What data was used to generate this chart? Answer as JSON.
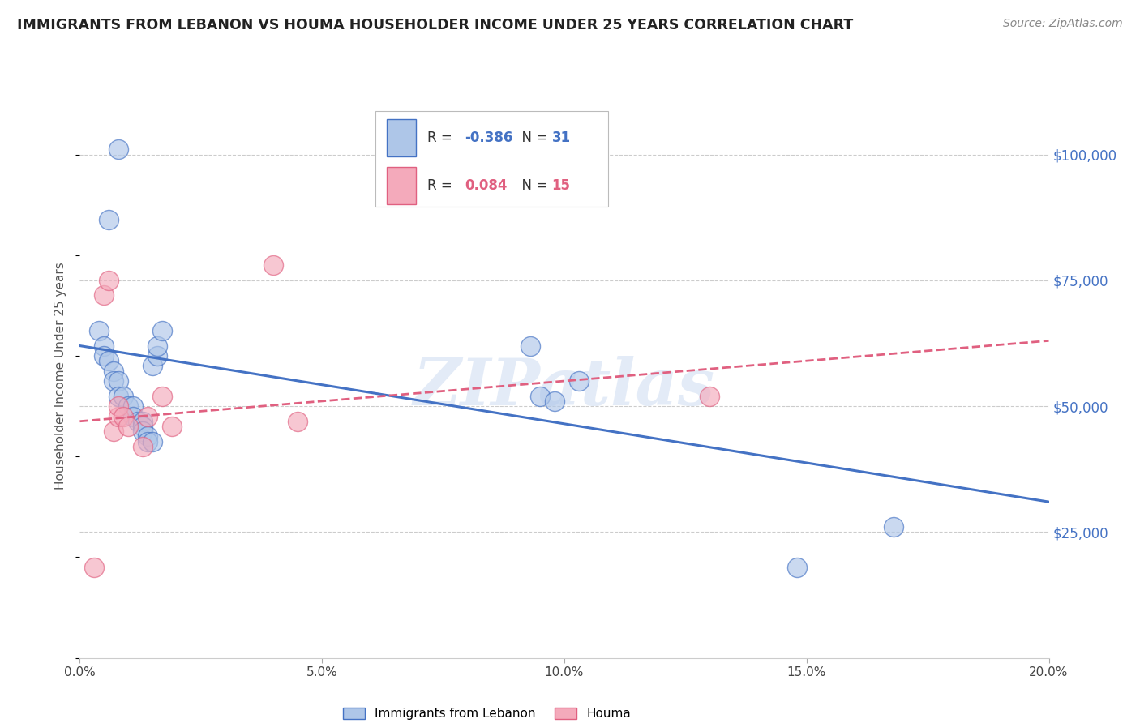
{
  "title": "IMMIGRANTS FROM LEBANON VS HOUMA HOUSEHOLDER INCOME UNDER 25 YEARS CORRELATION CHART",
  "source": "Source: ZipAtlas.com",
  "ylabel": "Householder Income Under 25 years",
  "xlabel_ticks": [
    "0.0%",
    "5.0%",
    "10.0%",
    "15.0%",
    "20.0%"
  ],
  "xlabel_vals": [
    0.0,
    0.05,
    0.1,
    0.15,
    0.2
  ],
  "ylabel_ticks": [
    "$25,000",
    "$50,000",
    "$75,000",
    "$100,000"
  ],
  "ylabel_vals": [
    25000,
    50000,
    75000,
    100000
  ],
  "xlim": [
    0.0,
    0.2
  ],
  "ylim": [
    0,
    112000
  ],
  "legend_r_blue": "-0.386",
  "legend_n_blue": "31",
  "legend_r_pink": "0.084",
  "legend_n_pink": "15",
  "legend_label_blue": "Immigrants from Lebanon",
  "legend_label_pink": "Houma",
  "watermark": "ZIPatlas",
  "blue_scatter_x": [
    0.008,
    0.006,
    0.004,
    0.005,
    0.005,
    0.006,
    0.007,
    0.007,
    0.008,
    0.008,
    0.009,
    0.01,
    0.011,
    0.011,
    0.012,
    0.013,
    0.013,
    0.013,
    0.014,
    0.014,
    0.015,
    0.015,
    0.016,
    0.016,
    0.017,
    0.093,
    0.095,
    0.098,
    0.103,
    0.148,
    0.168
  ],
  "blue_scatter_y": [
    101000,
    87000,
    65000,
    62000,
    60000,
    59000,
    57000,
    55000,
    55000,
    52000,
    52000,
    50000,
    50000,
    48000,
    47000,
    47000,
    46000,
    45000,
    44000,
    43000,
    43000,
    58000,
    60000,
    62000,
    65000,
    62000,
    52000,
    51000,
    55000,
    18000,
    26000
  ],
  "pink_scatter_x": [
    0.003,
    0.005,
    0.006,
    0.007,
    0.008,
    0.008,
    0.009,
    0.01,
    0.013,
    0.014,
    0.017,
    0.019,
    0.04,
    0.045,
    0.13
  ],
  "pink_scatter_y": [
    18000,
    72000,
    75000,
    45000,
    48000,
    50000,
    48000,
    46000,
    42000,
    48000,
    52000,
    46000,
    78000,
    47000,
    52000
  ],
  "blue_line_color": "#4472C4",
  "pink_line_color": "#E06080",
  "blue_scatter_color": "#AEC6E8",
  "pink_scatter_color": "#F4AABB",
  "grid_color": "#CCCCCC",
  "title_color": "#222222",
  "axis_label_color": "#4472C4",
  "background_color": "#FFFFFF",
  "blue_line_x0": 0.0,
  "blue_line_y0": 62000,
  "blue_line_x1": 0.2,
  "blue_line_y1": 31000,
  "pink_line_x0": 0.0,
  "pink_line_y0": 47000,
  "pink_line_x1": 0.2,
  "pink_line_y1": 63000
}
